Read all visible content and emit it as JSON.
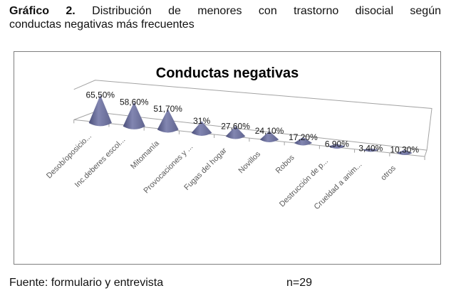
{
  "heading": {
    "label": "Gráfico 2.",
    "line1": "Distribución de menores con trastorno disocial según",
    "line2": "conductas negativas más frecuentes"
  },
  "chart_data": {
    "type": "bar",
    "subtype": "3d-cone-perspective",
    "title": "Conductas negativas",
    "categories": [
      "Desob/oposicio...",
      "Inc.deberes escol...",
      "Mitomanía",
      "Provocaciones y ...",
      "Fugas del hogar",
      "Novillos",
      "Robos",
      "Destrucción de p...",
      "Crueldad a anim...",
      "otros"
    ],
    "values": [
      65.5,
      58.6,
      51.7,
      31,
      27.6,
      24.1,
      17.2,
      6.9,
      3.4,
      10.3
    ],
    "value_labels": [
      "65,50%",
      "58,60%",
      "51,70%",
      "31%",
      "27,60%",
      "24,10%",
      "17,20%",
      "6,90%",
      "3,40%",
      "10,30%"
    ],
    "xlabel": "",
    "ylabel": "",
    "ylim": [
      0,
      70
    ],
    "legend": false,
    "grid": false
  },
  "footer": {
    "source": "Fuente: formulario y entrevista",
    "n": "n=29"
  },
  "colors": {
    "cone_dark": "#4b4f7a",
    "cone_light": "#8286b1",
    "cone_mid": "#60648f",
    "axis_line": "#a3a3a3",
    "category_label_text": "#595959",
    "frame_border": "#7f7f7f"
  }
}
